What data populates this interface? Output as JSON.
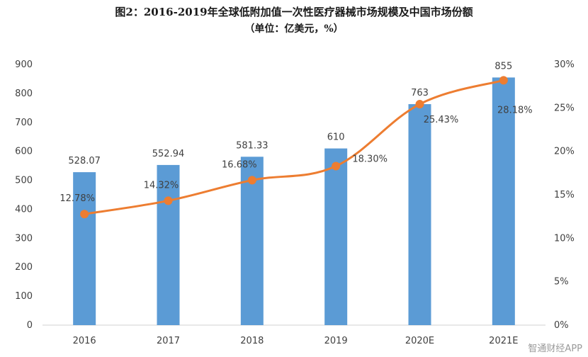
{
  "chart_data": {
    "type": "bar+line",
    "title": "图2：2016-2019年全球低附加值一次性医疗器械市场规模及中国市场份额",
    "subtitle": "（单位：亿美元，%）",
    "categories": [
      "2016",
      "2017",
      "2018",
      "2019",
      "2020E",
      "2021E"
    ],
    "series": [
      {
        "name": "全球低附加值一次性医疗器械市场规模",
        "type": "bar",
        "axis": "left",
        "values": [
          528.07,
          552.94,
          581.33,
          610,
          763,
          855
        ],
        "labels": [
          "528.07",
          "552.94",
          "581.33",
          "610",
          "763",
          "855"
        ],
        "color": "#5b9bd5"
      },
      {
        "name": "中国市场份额",
        "type": "line",
        "axis": "right",
        "values": [
          12.78,
          14.32,
          16.68,
          18.3,
          25.43,
          28.18
        ],
        "labels": [
          "12.78%",
          "14.32%",
          "16.68%",
          "18.30%",
          "25.43%",
          "28.18%"
        ],
        "color": "#ed7d31"
      }
    ],
    "y_left": {
      "min": 0,
      "max": 900,
      "ticks": [
        "0",
        "100",
        "200",
        "300",
        "400",
        "500",
        "600",
        "700",
        "800",
        "900"
      ]
    },
    "y_right": {
      "min": 0,
      "max": 30,
      "ticks": [
        "0%",
        "5%",
        "10%",
        "15%",
        "20%",
        "25%",
        "30%"
      ]
    },
    "grid": false,
    "legend": "none"
  },
  "watermark": "智通财经APP"
}
